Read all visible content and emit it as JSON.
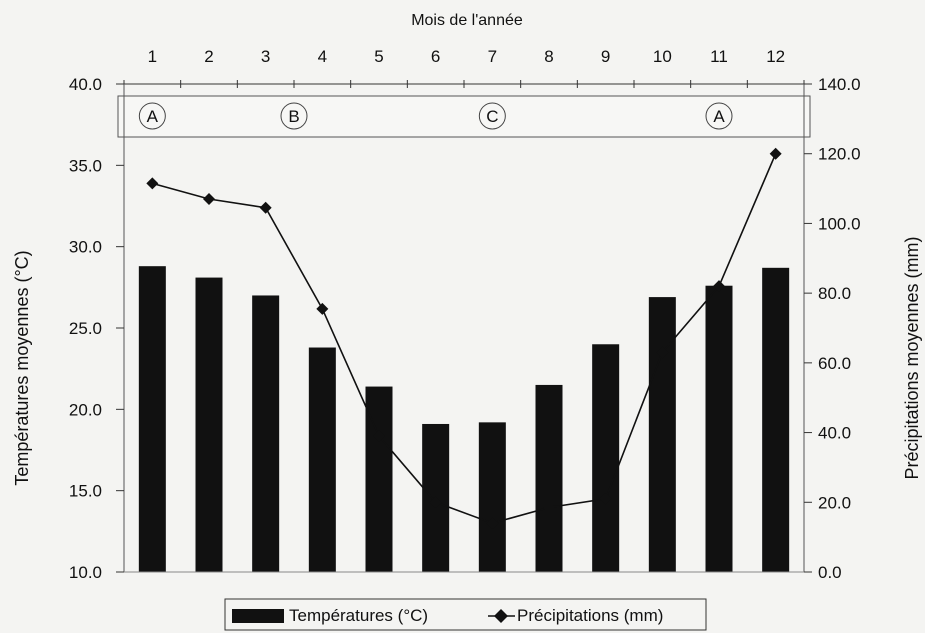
{
  "chart_data": {
    "type": "bar",
    "top_axis_title": "Mois de l'année",
    "categories": [
      "1",
      "2",
      "3",
      "4",
      "5",
      "6",
      "7",
      "8",
      "9",
      "10",
      "11",
      "12"
    ],
    "y_left": {
      "label": "Températures moyennes (°C)",
      "ylim": [
        10.0,
        40.0
      ],
      "ticks": [
        "10.0",
        "15.0",
        "20.0",
        "25.0",
        "30.0",
        "35.0",
        "40.0"
      ]
    },
    "y_right": {
      "label": "Précipitations moyennes (mm)",
      "ylim": [
        0.0,
        140.0
      ],
      "ticks": [
        "0.0",
        "20.0",
        "40.0",
        "60.0",
        "80.0",
        "100.0",
        "120.0",
        "140.0"
      ]
    },
    "series": [
      {
        "name": "Températures (°C)",
        "type": "bar",
        "axis": "left",
        "color": "#111111",
        "values": [
          28.8,
          28.1,
          27.0,
          23.8,
          21.4,
          19.1,
          19.2,
          21.5,
          24.0,
          26.9,
          27.6,
          28.7
        ]
      },
      {
        "name": "Précipitations (mm)",
        "type": "line",
        "axis": "right",
        "marker": "diamond",
        "color": "#111111",
        "values": [
          111.5,
          107.0,
          104.5,
          75.5,
          39.0,
          20.0,
          14.0,
          18.5,
          21.0,
          63.0,
          82.0,
          120.0
        ]
      }
    ],
    "season_markers": [
      {
        "label": "A",
        "month": 1
      },
      {
        "label": "B",
        "month": 3.5
      },
      {
        "label": "C",
        "month": 7
      },
      {
        "label": "A",
        "month": 11
      }
    ],
    "legend": {
      "position": "bottom",
      "items": [
        "Températures (°C)",
        "Précipitations (mm)"
      ]
    },
    "grid": false
  }
}
